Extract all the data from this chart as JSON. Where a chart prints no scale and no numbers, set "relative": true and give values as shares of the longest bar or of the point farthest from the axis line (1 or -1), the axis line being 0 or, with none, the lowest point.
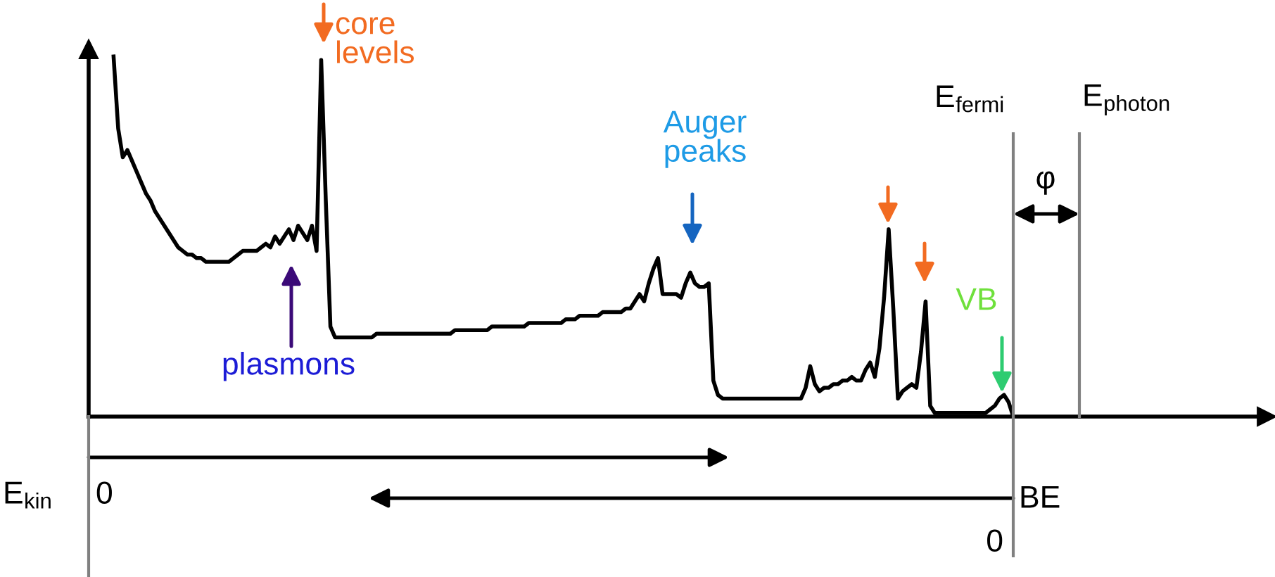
{
  "chart_data": {
    "type": "line",
    "relative": true,
    "color": "#000000",
    "legend": false,
    "marker": "none",
    "line_style": "solid",
    "categories": [
      null,
      null,
      null,
      null,
      null,
      null,
      null,
      null,
      null,
      null,
      null,
      null,
      null,
      null,
      null,
      null,
      null,
      null,
      null,
      null,
      null,
      null,
      null,
      null,
      null,
      null,
      null,
      null,
      null,
      null,
      null,
      null,
      null,
      null,
      null,
      null,
      null,
      null,
      null,
      null,
      null,
      null,
      null,
      null,
      null,
      null,
      null,
      null,
      null,
      null,
      null,
      null,
      null,
      null,
      null,
      null,
      null,
      null,
      null,
      null,
      null,
      null,
      null,
      null,
      null,
      null,
      null,
      null,
      null,
      null,
      null,
      null,
      null,
      null,
      null,
      null,
      null,
      null,
      null,
      null,
      null,
      null,
      null,
      null,
      null,
      null,
      null,
      null,
      null,
      null,
      null,
      null,
      null,
      null,
      null,
      null,
      null,
      null,
      null,
      null,
      null,
      null,
      null,
      null,
      null,
      null,
      null,
      null,
      null,
      null,
      null,
      null,
      null,
      null,
      null,
      null,
      null,
      null,
      null,
      null,
      null,
      null,
      null,
      null,
      null,
      null,
      null,
      null,
      null,
      null,
      null,
      null,
      null,
      null,
      null,
      null,
      null,
      null,
      null,
      null,
      null,
      null,
      null,
      null,
      null,
      null,
      null,
      null,
      null,
      null,
      null,
      null,
      null,
      null,
      null,
      null,
      null,
      null,
      null,
      null,
      null,
      null,
      null,
      null,
      null,
      null,
      null,
      null,
      null,
      null,
      null,
      null,
      null,
      null,
      null,
      null,
      null,
      null,
      null,
      null,
      null,
      null,
      null,
      null,
      null,
      null,
      null,
      null,
      null,
      null,
      null,
      null,
      null,
      null,
      null,
      null
    ],
    "values": [
      1.0,
      0.8,
      0.72,
      0.74,
      0.71,
      0.68,
      0.65,
      0.62,
      0.6,
      0.57,
      0.55,
      0.53,
      0.51,
      0.49,
      0.47,
      0.46,
      0.45,
      0.45,
      0.44,
      0.44,
      0.43,
      0.43,
      0.43,
      0.43,
      0.43,
      0.43,
      0.44,
      0.45,
      0.46,
      0.46,
      0.46,
      0.46,
      0.47,
      0.48,
      0.47,
      0.5,
      0.48,
      0.5,
      0.52,
      0.49,
      0.53,
      0.51,
      0.49,
      0.53,
      0.46,
      0.99,
      0.6,
      0.25,
      0.22,
      0.22,
      0.22,
      0.22,
      0.22,
      0.22,
      0.22,
      0.22,
      0.22,
      0.23,
      0.23,
      0.23,
      0.23,
      0.23,
      0.23,
      0.23,
      0.23,
      0.23,
      0.23,
      0.23,
      0.23,
      0.23,
      0.23,
      0.23,
      0.23,
      0.23,
      0.24,
      0.24,
      0.24,
      0.24,
      0.24,
      0.24,
      0.24,
      0.24,
      0.25,
      0.25,
      0.25,
      0.25,
      0.25,
      0.25,
      0.25,
      0.25,
      0.26,
      0.26,
      0.26,
      0.26,
      0.26,
      0.26,
      0.26,
      0.26,
      0.27,
      0.27,
      0.27,
      0.28,
      0.28,
      0.28,
      0.28,
      0.28,
      0.29,
      0.29,
      0.29,
      0.29,
      0.29,
      0.3,
      0.3,
      0.32,
      0.34,
      0.32,
      0.37,
      0.41,
      0.44,
      0.34,
      0.34,
      0.34,
      0.34,
      0.33,
      0.37,
      0.4,
      0.37,
      0.36,
      0.36,
      0.37,
      0.1,
      0.06,
      0.05,
      0.05,
      0.05,
      0.05,
      0.05,
      0.05,
      0.05,
      0.05,
      0.05,
      0.05,
      0.05,
      0.05,
      0.05,
      0.05,
      0.05,
      0.05,
      0.05,
      0.05,
      0.08,
      0.14,
      0.09,
      0.07,
      0.08,
      0.08,
      0.09,
      0.09,
      0.1,
      0.1,
      0.11,
      0.1,
      0.1,
      0.13,
      0.15,
      0.11,
      0.19,
      0.33,
      0.52,
      0.3,
      0.05,
      0.07,
      0.08,
      0.09,
      0.08,
      0.18,
      0.32,
      0.03,
      0.01,
      0.01,
      0.01,
      0.01,
      0.01,
      0.01,
      0.01,
      0.01,
      0.01,
      0.01,
      0.01,
      0.01,
      0.02,
      0.03,
      0.05,
      0.06,
      0.04,
      0
    ],
    "annotations": [
      "core\nlevels",
      "Auger\npeaks",
      "plasmons",
      "VB",
      "E$_{fermi}$",
      "E$_{photon}$",
      "φ",
      "E$_{kin}$",
      "0",
      "0",
      "BE"
    ]
  }
}
